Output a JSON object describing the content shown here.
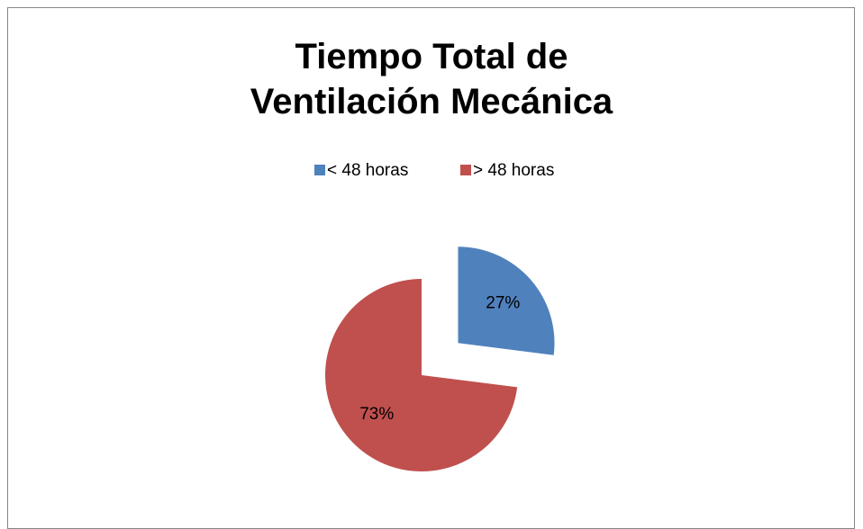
{
  "chart_data": {
    "type": "pie",
    "title": "Tiempo Total de Ventilación Mecánica",
    "categories": [
      "< 48 horas",
      "> 48 horas"
    ],
    "values": [
      27,
      73
    ],
    "value_labels": [
      "27%",
      "73%"
    ],
    "colors": [
      "#4f81bd",
      "#c0504d"
    ],
    "legend": "top"
  }
}
